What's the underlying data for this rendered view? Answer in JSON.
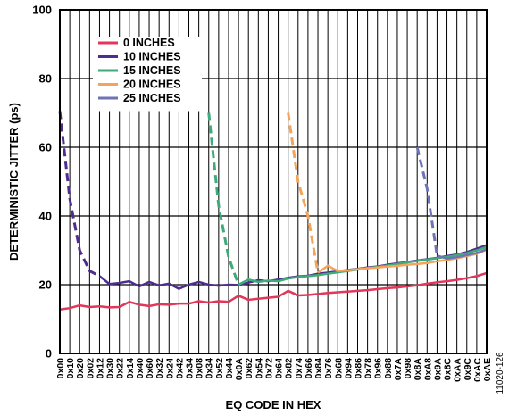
{
  "figure_id": "11020-126",
  "chart_data": {
    "type": "line",
    "title": "",
    "xlabel": "EQ CODE IN HEX",
    "ylabel": "DETERMINISTIC JITTER (ps)",
    "ylim": [
      0,
      100
    ],
    "yticks": [
      0,
      20,
      40,
      60,
      80,
      100
    ],
    "grid": true,
    "legend": "top-left",
    "categories": [
      "0x00",
      "0x10",
      "0x20",
      "0x02",
      "0x12",
      "0x30",
      "0x22",
      "0x14",
      "0x40",
      "0x60",
      "0x32",
      "0x24",
      "0x42",
      "0x34",
      "0x08",
      "0x34",
      "0x52",
      "0x44",
      "0x0A",
      "0x62",
      "0x54",
      "0x72",
      "0x64",
      "0x82",
      "0x74",
      "0x66",
      "0x84",
      "0x76",
      "0x68",
      "0x94",
      "0x86",
      "0x78",
      "0x96",
      "0x88",
      "0x7A",
      "0x98",
      "0x8A",
      "0xA8",
      "0x9A",
      "0x8C",
      "0xAA",
      "0x9C",
      "0xAC",
      "0xAE"
    ],
    "series": [
      {
        "name": "0 INCHES",
        "color": "#E2365A",
        "dashed": false,
        "values": [
          12.8,
          13.2,
          14.0,
          13.5,
          13.7,
          13.4,
          13.5,
          15.0,
          14.2,
          13.8,
          14.3,
          14.2,
          14.5,
          14.5,
          15.2,
          14.8,
          15.2,
          15.0,
          16.8,
          15.6,
          15.9,
          16.2,
          16.5,
          18.2,
          16.9,
          17.0,
          17.3,
          17.6,
          17.8,
          18.0,
          18.2,
          18.4,
          18.7,
          19.0,
          19.2,
          19.5,
          19.8,
          20.3,
          20.7,
          21.0,
          21.4,
          21.9,
          22.5,
          23.4
        ]
      },
      {
        "name": "10 INCHES",
        "color": "#4F2D8F",
        "dashed": false,
        "values": [
          70.5,
          45.0,
          30.0,
          24.0,
          22.5,
          20.2,
          20.5,
          21.0,
          19.5,
          20.8,
          19.8,
          20.3,
          18.8,
          20.0,
          20.8,
          20.0,
          19.7,
          20.0,
          19.9,
          20.6,
          21.3,
          21.0,
          21.5,
          22.0,
          22.4,
          22.6,
          23.2,
          23.5,
          23.9,
          24.3,
          24.6,
          25.0,
          25.3,
          25.8,
          26.2,
          26.6,
          27.0,
          27.4,
          27.8,
          28.3,
          28.8,
          29.5,
          30.5,
          31.5
        ]
      },
      {
        "name": "15 INCHES",
        "color": "#3FAA7A",
        "dashed": false,
        "values": [
          null,
          null,
          null,
          null,
          null,
          null,
          null,
          null,
          null,
          null,
          null,
          null,
          null,
          null,
          null,
          70.0,
          43.0,
          28.0,
          20.0,
          21.5,
          20.8,
          21.2,
          21.0,
          21.8,
          22.2,
          22.5,
          22.8,
          23.2,
          23.6,
          24.0,
          24.4,
          24.8,
          25.2,
          25.6,
          26.0,
          26.5,
          26.9,
          27.3,
          27.7,
          28.1,
          28.6,
          29.2,
          30.0,
          31.0
        ]
      },
      {
        "name": "20 INCHES",
        "color": "#F3A45A",
        "dashed": false,
        "values": [
          null,
          null,
          null,
          null,
          null,
          null,
          null,
          null,
          null,
          null,
          null,
          null,
          null,
          null,
          null,
          null,
          null,
          null,
          null,
          null,
          null,
          null,
          null,
          70.0,
          50.0,
          40.0,
          23.5,
          25.5,
          24.0,
          24.2,
          24.5,
          24.8,
          25.0,
          25.3,
          25.5,
          25.8,
          26.0,
          26.3,
          26.8,
          27.2,
          27.7,
          28.3,
          29.0,
          30.2
        ]
      },
      {
        "name": "25 INCHES",
        "color": "#6E74B6",
        "dashed": false,
        "values": [
          null,
          null,
          null,
          null,
          null,
          null,
          null,
          null,
          null,
          null,
          null,
          null,
          null,
          null,
          null,
          null,
          null,
          null,
          null,
          null,
          null,
          null,
          null,
          null,
          null,
          null,
          null,
          null,
          null,
          null,
          null,
          null,
          null,
          null,
          null,
          null,
          60.0,
          48.0,
          28.5,
          27.6,
          28.0,
          28.6,
          29.2,
          30.3
        ]
      }
    ],
    "dashed_segments": [
      {
        "series": "10 INCHES",
        "from": 0,
        "to": 4
      },
      {
        "series": "15 INCHES",
        "from": 15,
        "to": 18
      },
      {
        "series": "20 INCHES",
        "from": 23,
        "to": 26
      },
      {
        "series": "25 INCHES",
        "from": 36,
        "to": 38
      }
    ]
  }
}
